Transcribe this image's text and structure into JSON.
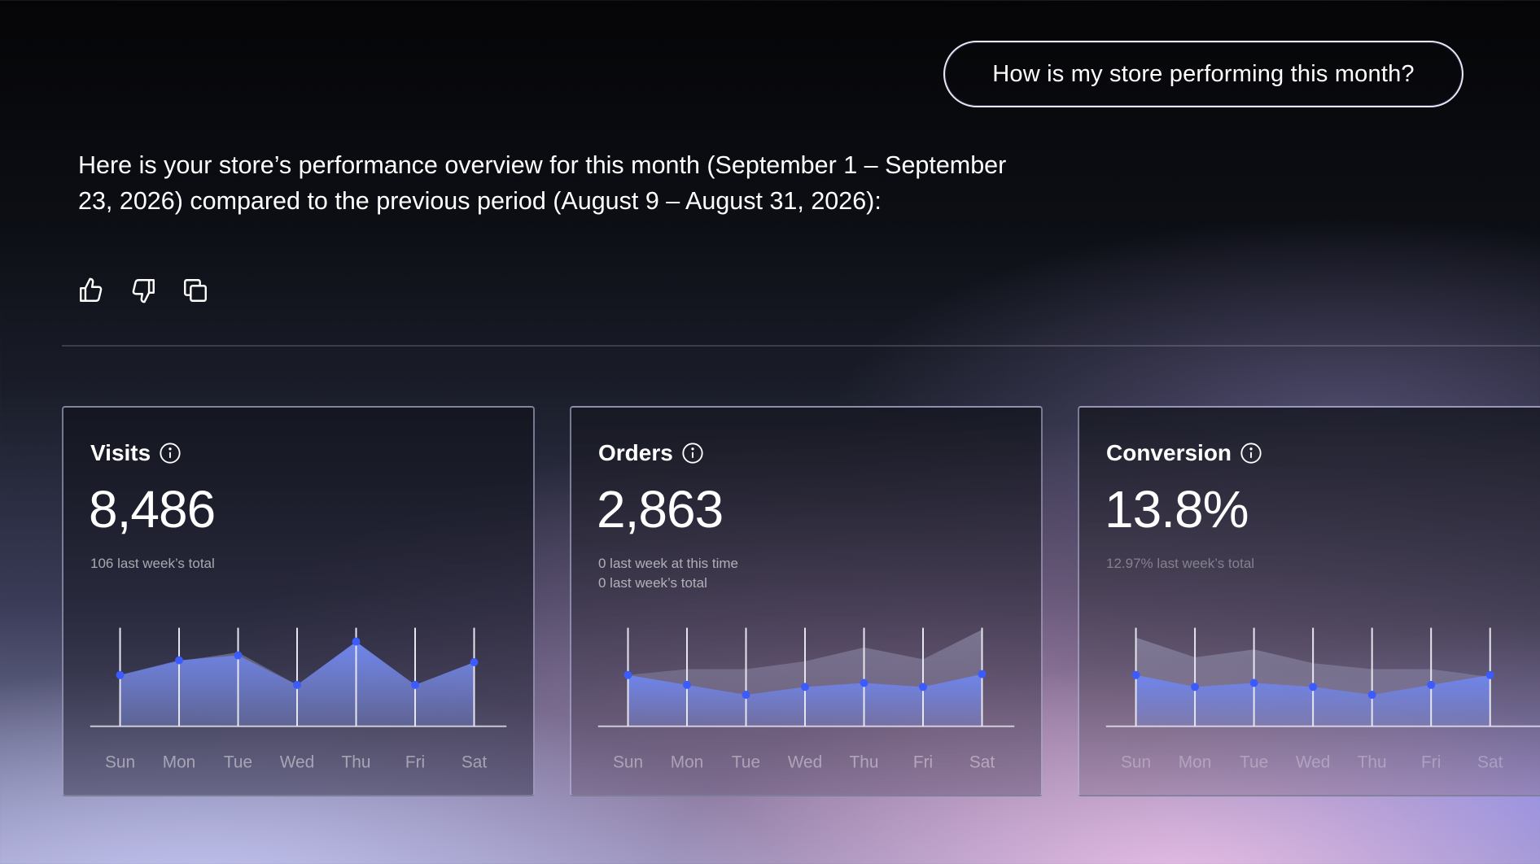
{
  "prompt": "How is my store performing this month?",
  "response": {
    "line1": "Here is your store’s performance overview for this month (September 1 – September",
    "line2": "23, 2026) compared to the previous period (August 9 – August 31, 2026):"
  },
  "actions": {
    "like_icon": "thumbs-up-icon",
    "dislike_icon": "thumbs-down-icon",
    "copy_icon": "copy-icon"
  },
  "colors": {
    "accent": "#3b5bff",
    "area": "#6f86f0",
    "comparison_area": "#9a9ab8"
  },
  "days": [
    "Sun",
    "Mon",
    "Tue",
    "Wed",
    "Thu",
    "Fri",
    "Sat"
  ],
  "cards": [
    {
      "title": "Visits",
      "value": "8,486",
      "sub1": "106 last week’s total",
      "sub2": "",
      "chart_data": {
        "type": "area",
        "categories": [
          "Sun",
          "Mon",
          "Tue",
          "Wed",
          "Thu",
          "Fri",
          "Sat"
        ],
        "ylim": [
          0,
          100
        ],
        "series": [
          {
            "values": [
              52,
              67,
              72,
              42,
              86,
              42,
              65
            ]
          },
          {
            "values": [
              52,
              66,
              75,
              42,
              85,
              42,
              65
            ]
          }
        ]
      }
    },
    {
      "title": "Orders",
      "value": "2,863",
      "sub1": "0 last week at this time",
      "sub2": "0 last week’s total",
      "chart_data": {
        "type": "area",
        "categories": [
          "Sun",
          "Mon",
          "Tue",
          "Wed",
          "Thu",
          "Fri",
          "Sat"
        ],
        "ylim": [
          0,
          100
        ],
        "series": [
          {
            "values": [
              52,
              42,
              32,
              40,
              44,
              40,
              53
            ]
          },
          {
            "values": [
              52,
              58,
              58,
              66,
              80,
              68,
              98
            ]
          }
        ]
      }
    },
    {
      "title": "Conversion",
      "value": "13.8%",
      "sub1": "12.97% last week’s total",
      "sub2": "",
      "chart_data": {
        "type": "area",
        "categories": [
          "Sun",
          "Mon",
          "Tue",
          "Wed",
          "Thu",
          "Fri",
          "Sat"
        ],
        "ylim": [
          0,
          100
        ],
        "series": [
          {
            "values": [
              52,
              40,
              44,
              40,
              32,
              42,
              52
            ]
          },
          {
            "values": [
              90,
              70,
              78,
              64,
              58,
              58,
              50
            ]
          }
        ]
      }
    }
  ]
}
